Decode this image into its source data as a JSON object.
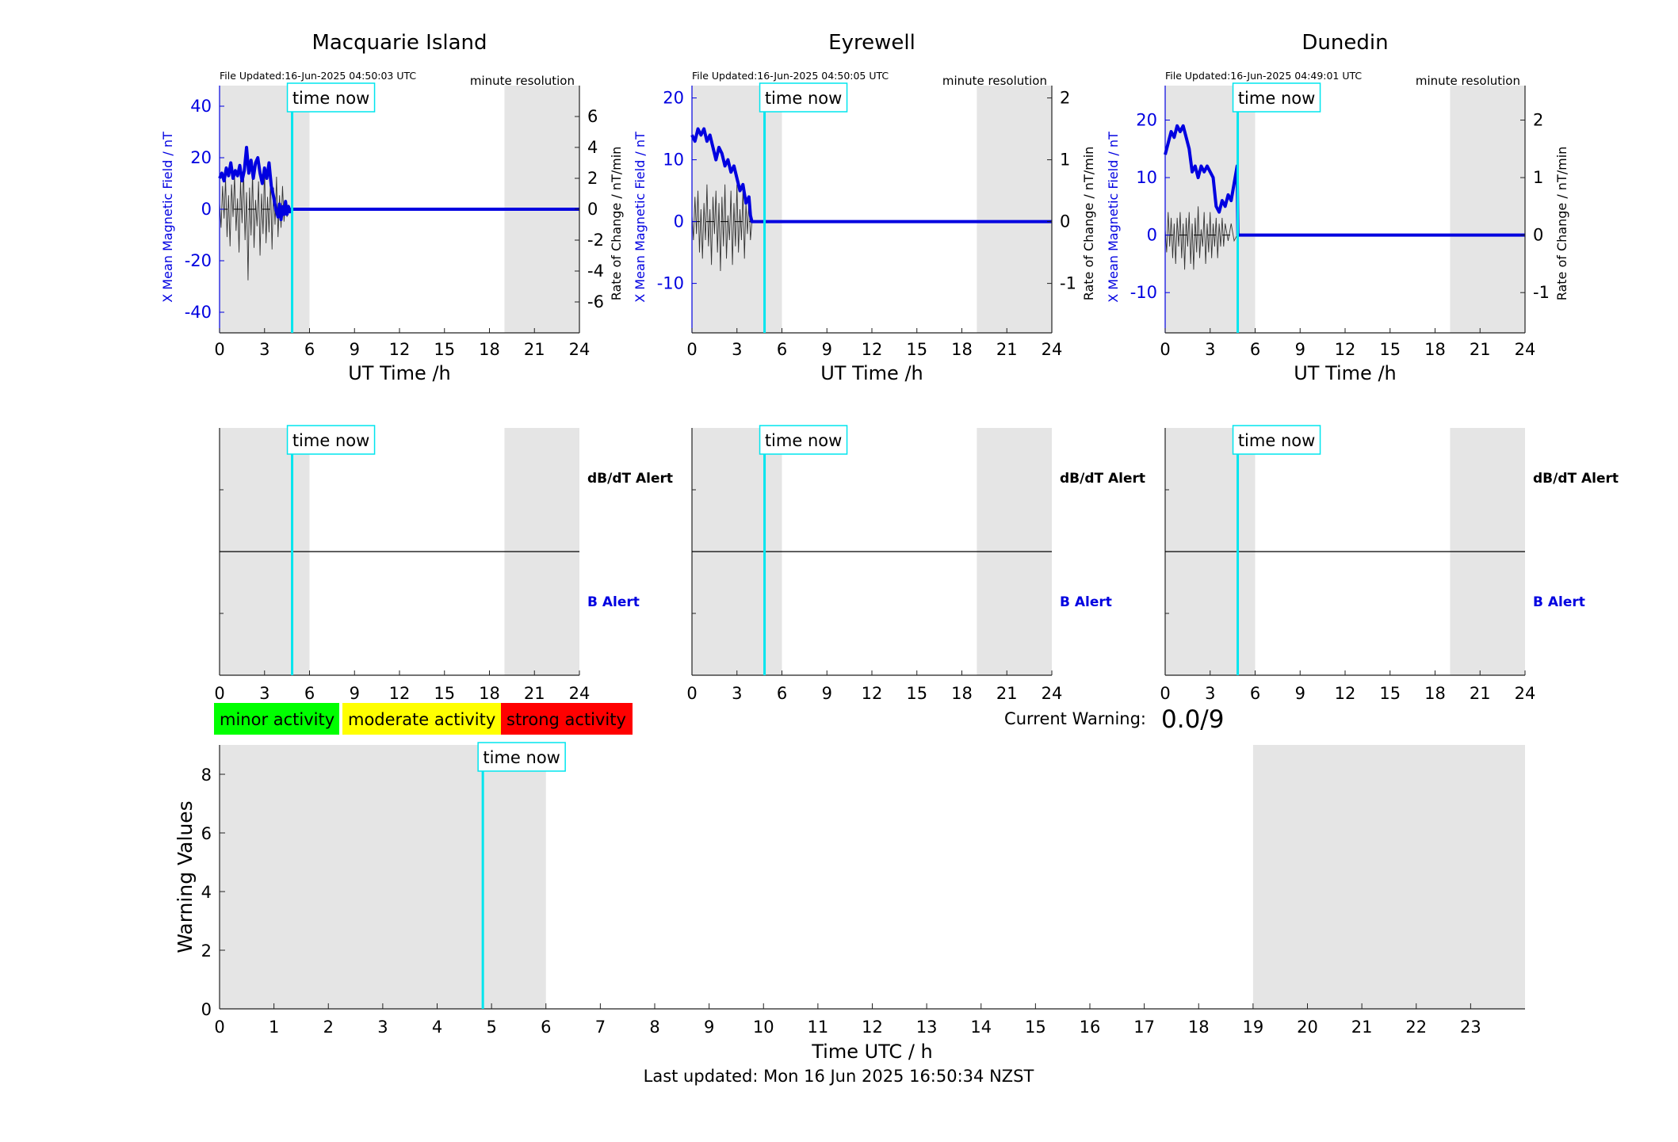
{
  "stations": [
    {
      "name": "Macquarie Island",
      "file_updated": "File Updated:16-Jun-2025 04:50:03 UTC",
      "resolution": "minute resolution",
      "ylabel_left": "X Mean Magnetic Field / nT",
      "ylabel_right": "Rate of Change / nT/min",
      "xlabel": "UT Time /h",
      "ylim_left": [
        -48,
        48
      ],
      "ylim_right": [
        -8,
        8
      ],
      "yticks_left": [
        -40,
        -20,
        0,
        20,
        40
      ],
      "yticks_right": [
        -6,
        -4,
        -2,
        0,
        2,
        4,
        6
      ],
      "b_trace": [
        [
          0,
          12
        ],
        [
          0.15,
          14
        ],
        [
          0.3,
          11
        ],
        [
          0.45,
          16
        ],
        [
          0.6,
          13
        ],
        [
          0.75,
          18
        ],
        [
          0.9,
          12
        ],
        [
          1.05,
          15
        ],
        [
          1.2,
          13
        ],
        [
          1.35,
          17
        ],
        [
          1.5,
          11
        ],
        [
          1.65,
          15
        ],
        [
          1.8,
          24
        ],
        [
          1.95,
          14
        ],
        [
          2.1,
          19
        ],
        [
          2.25,
          12
        ],
        [
          2.4,
          18
        ],
        [
          2.55,
          20
        ],
        [
          2.7,
          14
        ],
        [
          2.85,
          10
        ],
        [
          3.0,
          16
        ],
        [
          3.15,
          12
        ],
        [
          3.3,
          18
        ],
        [
          3.45,
          9
        ],
        [
          3.6,
          5
        ],
        [
          3.75,
          0
        ],
        [
          3.9,
          -3
        ],
        [
          4.0,
          2
        ],
        [
          4.1,
          -4
        ],
        [
          4.2,
          1
        ],
        [
          4.3,
          -2
        ],
        [
          4.4,
          3
        ],
        [
          4.5,
          -2
        ],
        [
          4.6,
          1
        ],
        [
          4.7,
          -1
        ],
        [
          4.8,
          0
        ],
        [
          24,
          0
        ]
      ],
      "rate_trace": [
        [
          0,
          0.4
        ],
        [
          0.1,
          -1.2
        ],
        [
          0.2,
          1.5
        ],
        [
          0.3,
          -0.6
        ],
        [
          0.4,
          2.0
        ],
        [
          0.5,
          -1.8
        ],
        [
          0.6,
          0.9
        ],
        [
          0.7,
          -2.4
        ],
        [
          0.8,
          1.6
        ],
        [
          0.9,
          -0.5
        ],
        [
          1.0,
          2.2
        ],
        [
          1.1,
          -1.4
        ],
        [
          1.2,
          0.7
        ],
        [
          1.3,
          -2.8
        ],
        [
          1.4,
          1.9
        ],
        [
          1.5,
          -0.9
        ],
        [
          1.6,
          2.6
        ],
        [
          1.7,
          -2.0
        ],
        [
          1.8,
          1.1
        ],
        [
          1.9,
          -4.6
        ],
        [
          2.0,
          1.4
        ],
        [
          2.1,
          -1.7
        ],
        [
          2.2,
          2.4
        ],
        [
          2.3,
          -2.5
        ],
        [
          2.4,
          0.6
        ],
        [
          2.5,
          -1.1
        ],
        [
          2.6,
          1.8
        ],
        [
          2.7,
          -3.0
        ],
        [
          2.8,
          1.0
        ],
        [
          2.9,
          -1.6
        ],
        [
          3.0,
          2.7
        ],
        [
          3.1,
          -2.2
        ],
        [
          3.2,
          0.8
        ],
        [
          3.3,
          -1.5
        ],
        [
          3.4,
          2.0
        ],
        [
          3.5,
          -2.6
        ],
        [
          3.6,
          1.4
        ],
        [
          3.7,
          -1.0
        ],
        [
          3.8,
          2.1
        ],
        [
          3.9,
          -1.8
        ],
        [
          4.0,
          0.9
        ],
        [
          4.1,
          -1.2
        ],
        [
          4.2,
          1.5
        ],
        [
          4.3,
          -0.8
        ],
        [
          4.4,
          0.6
        ],
        [
          4.5,
          -0.5
        ],
        [
          4.6,
          0.3
        ],
        [
          4.7,
          -0.2
        ],
        [
          4.8,
          0
        ]
      ]
    },
    {
      "name": "Eyrewell",
      "file_updated": "File Updated:16-Jun-2025 04:50:05 UTC",
      "resolution": "minute resolution",
      "ylabel_left": "X Mean Magnetic Field / nT",
      "ylabel_right": "Rate of Change / nT/min",
      "xlabel": "UT Time /h",
      "ylim_left": [
        -18,
        22
      ],
      "ylim_right": [
        -1.8,
        2.2
      ],
      "yticks_left": [
        -10,
        0,
        10,
        20
      ],
      "yticks_right": [
        -1,
        0,
        1,
        2
      ],
      "b_trace": [
        [
          0,
          14
        ],
        [
          0.2,
          13
        ],
        [
          0.4,
          15
        ],
        [
          0.6,
          14
        ],
        [
          0.8,
          15
        ],
        [
          1.0,
          13
        ],
        [
          1.2,
          14
        ],
        [
          1.4,
          12
        ],
        [
          1.6,
          10
        ],
        [
          1.8,
          12
        ],
        [
          2.0,
          11
        ],
        [
          2.2,
          9
        ],
        [
          2.4,
          10
        ],
        [
          2.6,
          8
        ],
        [
          2.8,
          9
        ],
        [
          3.0,
          7
        ],
        [
          3.2,
          5
        ],
        [
          3.4,
          6
        ],
        [
          3.6,
          3
        ],
        [
          3.8,
          4
        ],
        [
          3.9,
          1
        ],
        [
          4.0,
          0
        ],
        [
          24,
          0
        ]
      ],
      "rate_trace": [
        [
          0,
          0.1
        ],
        [
          0.1,
          -0.3
        ],
        [
          0.2,
          0.4
        ],
        [
          0.3,
          -0.2
        ],
        [
          0.4,
          0.5
        ],
        [
          0.5,
          -0.5
        ],
        [
          0.6,
          0.2
        ],
        [
          0.7,
          -0.6
        ],
        [
          0.8,
          0.3
        ],
        [
          0.9,
          -0.3
        ],
        [
          1.0,
          0.6
        ],
        [
          1.1,
          -0.4
        ],
        [
          1.2,
          0.2
        ],
        [
          1.3,
          -0.7
        ],
        [
          1.4,
          0.4
        ],
        [
          1.5,
          -0.2
        ],
        [
          1.6,
          0.5
        ],
        [
          1.7,
          -0.5
        ],
        [
          1.8,
          0.3
        ],
        [
          1.9,
          -0.8
        ],
        [
          2.0,
          0.4
        ],
        [
          2.1,
          -0.4
        ],
        [
          2.2,
          0.6
        ],
        [
          2.3,
          -0.6
        ],
        [
          2.4,
          0.1
        ],
        [
          2.5,
          -0.3
        ],
        [
          2.6,
          0.5
        ],
        [
          2.7,
          -0.7
        ],
        [
          2.8,
          0.3
        ],
        [
          2.9,
          -0.4
        ],
        [
          3.0,
          0.6
        ],
        [
          3.1,
          -0.5
        ],
        [
          3.2,
          0.2
        ],
        [
          3.3,
          -0.3
        ],
        [
          3.4,
          0.5
        ],
        [
          3.5,
          -0.6
        ],
        [
          3.6,
          0.3
        ],
        [
          3.7,
          -0.2
        ],
        [
          3.8,
          0.4
        ],
        [
          3.9,
          -0.3
        ],
        [
          4.0,
          0
        ]
      ]
    },
    {
      "name": "Dunedin",
      "file_updated": "File Updated:16-Jun-2025 04:49:01 UTC",
      "resolution": "minute resolution",
      "ylabel_left": "X Mean Magnetic Field / nT",
      "ylabel_right": "Rate of Change / nT/min",
      "xlabel": "UT Time /h",
      "ylim_left": [
        -17,
        26
      ],
      "ylim_right": [
        -1.7,
        2.6
      ],
      "yticks_left": [
        -10,
        0,
        10,
        20
      ],
      "yticks_right": [
        -1,
        0,
        1,
        2
      ],
      "b_trace": [
        [
          0,
          14
        ],
        [
          0.2,
          16
        ],
        [
          0.4,
          18
        ],
        [
          0.6,
          17
        ],
        [
          0.8,
          19
        ],
        [
          1.0,
          18
        ],
        [
          1.2,
          19
        ],
        [
          1.4,
          17
        ],
        [
          1.6,
          15
        ],
        [
          1.8,
          11
        ],
        [
          2.0,
          12
        ],
        [
          2.2,
          10
        ],
        [
          2.4,
          12
        ],
        [
          2.6,
          11
        ],
        [
          2.8,
          12
        ],
        [
          3.0,
          11
        ],
        [
          3.2,
          10
        ],
        [
          3.4,
          5
        ],
        [
          3.6,
          4
        ],
        [
          3.8,
          6
        ],
        [
          4.0,
          5
        ],
        [
          4.2,
          7
        ],
        [
          4.4,
          6
        ],
        [
          4.6,
          9
        ],
        [
          4.8,
          12
        ],
        [
          4.85,
          0
        ],
        [
          24,
          0
        ]
      ],
      "rate_trace": [
        [
          0,
          0.1
        ],
        [
          0.1,
          -0.3
        ],
        [
          0.2,
          0.4
        ],
        [
          0.3,
          -0.2
        ],
        [
          0.4,
          0.3
        ],
        [
          0.5,
          -0.4
        ],
        [
          0.6,
          0.2
        ],
        [
          0.7,
          -0.5
        ],
        [
          0.8,
          0.3
        ],
        [
          0.9,
          -0.2
        ],
        [
          1.0,
          0.4
        ],
        [
          1.1,
          -0.4
        ],
        [
          1.2,
          0.2
        ],
        [
          1.3,
          -0.6
        ],
        [
          1.4,
          0.3
        ],
        [
          1.5,
          -0.2
        ],
        [
          1.6,
          0.4
        ],
        [
          1.7,
          -0.5
        ],
        [
          1.8,
          0.2
        ],
        [
          1.9,
          -0.6
        ],
        [
          2.0,
          0.3
        ],
        [
          2.1,
          -0.3
        ],
        [
          2.2,
          0.5
        ],
        [
          2.3,
          -0.4
        ],
        [
          2.4,
          0.1
        ],
        [
          2.5,
          -0.2
        ],
        [
          2.6,
          0.4
        ],
        [
          2.7,
          -0.5
        ],
        [
          2.8,
          0.2
        ],
        [
          2.9,
          -0.3
        ],
        [
          3.0,
          0.4
        ],
        [
          3.1,
          -0.4
        ],
        [
          3.2,
          0.2
        ],
        [
          3.3,
          -0.2
        ],
        [
          3.4,
          0.3
        ],
        [
          3.5,
          -0.4
        ],
        [
          3.6,
          0.2
        ],
        [
          3.7,
          -0.2
        ],
        [
          3.8,
          0.3
        ],
        [
          3.9,
          -0.2
        ],
        [
          4.0,
          0.2
        ],
        [
          4.2,
          -0.1
        ],
        [
          4.4,
          0.2
        ],
        [
          4.6,
          -0.1
        ],
        [
          4.8,
          0
        ]
      ]
    }
  ],
  "time_now_label": "time now",
  "time_now_h": 4.84,
  "night_shading_h": [
    [
      0,
      6
    ],
    [
      19,
      24
    ]
  ],
  "x_ticks_station": [
    0,
    3,
    6,
    9,
    12,
    15,
    18,
    21,
    24
  ],
  "alert_labels": {
    "dbdt": "dB/dT Alert",
    "b": "B Alert"
  },
  "legend": [
    {
      "label": "minor activity",
      "color": "#00ff00"
    },
    {
      "label": "moderate activity",
      "color": "#ffff00"
    },
    {
      "label": "strong activity",
      "color": "#ff0000"
    }
  ],
  "current_warning": {
    "label": "Current Warning:",
    "value": "0.0/9"
  },
  "warning_chart": {
    "ylabel": "Warning Values",
    "xlabel": "Time UTC / h",
    "ylim": [
      0,
      9
    ],
    "yticks": [
      0,
      2,
      4,
      6,
      8
    ],
    "xlim": [
      0,
      24
    ],
    "xticks": [
      0,
      1,
      2,
      3,
      4,
      5,
      6,
      7,
      8,
      9,
      10,
      11,
      12,
      13,
      14,
      15,
      16,
      17,
      18,
      19,
      20,
      21,
      22,
      23
    ]
  },
  "last_updated": "Last updated: Mon 16 Jun 2025 16:50:34 NZST",
  "colors": {
    "b_field": "#0000e0",
    "time_now": "#00e5ee",
    "shading": "#e5e5e5",
    "rate": "#000000"
  },
  "chart_data": [
    {
      "type": "line",
      "title": "Macquarie Island",
      "xlabel": "UT Time /h",
      "ylabel": "X Mean Magnetic Field / nT",
      "y2label": "Rate of Change / nT/min",
      "xlim": [
        0,
        24
      ],
      "series": [
        {
          "name": "",
          "values_ref": "stations.0.b_trace"
        },
        {
          "name": "",
          "values_ref": "stations.0.rate_trace"
        }
      ]
    },
    {
      "type": "line",
      "title": "Eyrewell",
      "xlabel": "UT Time /h",
      "ylabel": "X Mean Magnetic Field / nT",
      "y2label": "Rate of Change / nT/min",
      "xlim": [
        0,
        24
      ]
    },
    {
      "type": "line",
      "title": "Dunedin",
      "xlabel": "UT Time /h",
      "ylabel": "X Mean Magnetic Field / nT",
      "y2label": "Rate of Change / nT/min",
      "xlim": [
        0,
        24
      ]
    },
    {
      "type": "bar",
      "xlabel": "Time UTC / h",
      "ylabel": "Warning Values",
      "ylim": [
        0,
        9
      ],
      "values": []
    }
  ]
}
